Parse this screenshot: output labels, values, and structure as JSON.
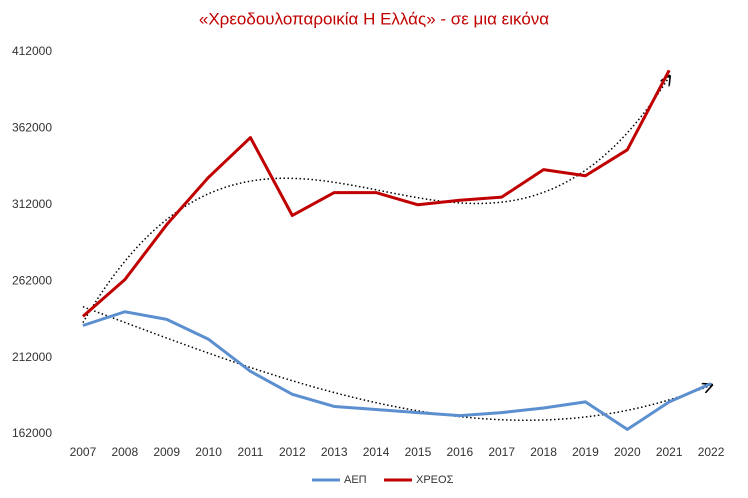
{
  "chart_data": {
    "type": "line",
    "title": "«Χρεοδουλοπαροικία Η Ελλάς»  - σε μια εικόνα",
    "categories": [
      "2007",
      "2008",
      "2009",
      "2010",
      "2011",
      "2012",
      "2013",
      "2014",
      "2015",
      "2016",
      "2017",
      "2018",
      "2019",
      "2020",
      "2021",
      "2022"
    ],
    "series": [
      {
        "name": "ΑΕΠ",
        "color": "#5b8fd0",
        "values": [
          233000,
          242000,
          237000,
          224000,
          203000,
          188000,
          180000,
          178000,
          176000,
          174000,
          176000,
          179000,
          183000,
          165000,
          183000,
          195000
        ]
      },
      {
        "name": "ΧΡΕΟΣ",
        "color": "#c00000",
        "values": [
          239000,
          263000,
          299000,
          330000,
          356000,
          305000,
          320000,
          320000,
          312000,
          315000,
          317000,
          335000,
          331000,
          348000,
          400000,
          null
        ]
      }
    ],
    "ylim": [
      162000,
      412000
    ],
    "yticks": [
      162000,
      212000,
      262000,
      312000,
      362000,
      412000
    ],
    "trendline": "polynomial",
    "legend": "bottom"
  }
}
